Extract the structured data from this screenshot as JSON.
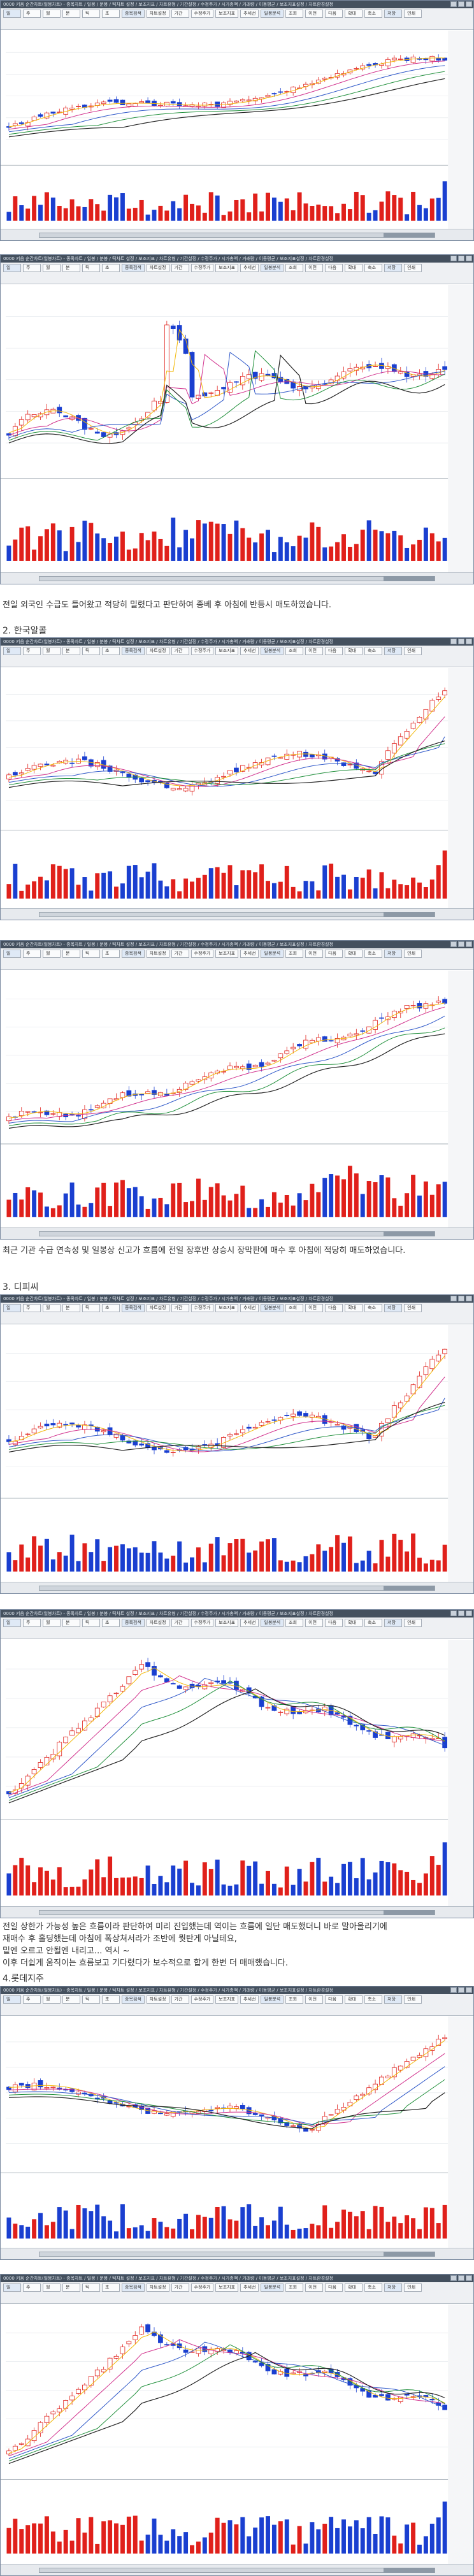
{
  "window": {
    "title": "0000 키움 순간차트(일봉차트) - 종목차트 / 일봉 / 분봉 / 틱차트 설정 / 보조지표 / 차트유형 / 기간설정 / 수정주가 / 시가총액 / 거래량 / 이동평균 / 보조지표설정 / 차트환경설정",
    "toolbar_items": [
      "일",
      "주",
      "월",
      "분",
      "틱",
      "초",
      "종목검색",
      "차트설정",
      "기간",
      "수정주가",
      "보조지표",
      "추세선",
      "일봉분석",
      "조회",
      "이전",
      "다음",
      "확대",
      "축소",
      "저장",
      "인쇄"
    ]
  },
  "sections": {
    "s1_text": "전일 외국인 수급도 들어왔고 적당히 밀렸다고 판단하여 종베 후 아침에 반등시 매도하였습니다.",
    "s2_heading": "2. 한국알콜",
    "s2_text": "최근 기관 수급 연속성 및 일봉상 신고가 흐름에 전일 장후반 상승시 장막판에 매수 후 아침에 적당히 매도하였습니다.",
    "s3_heading": "3. 디피씨",
    "s3_text": "전일 상한가 가능성 높은 흐름이라 판단하여 미리 진입했는데 역이는 흐름에 일단 매도했더니 바로 말아올리기에\n재매수 후 홀딩했는데 아침에 폭상쳐서라가 조반에 뭣탄게 아닐테요,\n밑엔 오르고 안될엔 내리고... 역시 ~\n이후 더쉽게 움직이는 흐름보고 기다렸다가 보수적으로 합게 한번 더 매매했습니다.",
    "s4_heading": "4.롯데지주"
  }
}
